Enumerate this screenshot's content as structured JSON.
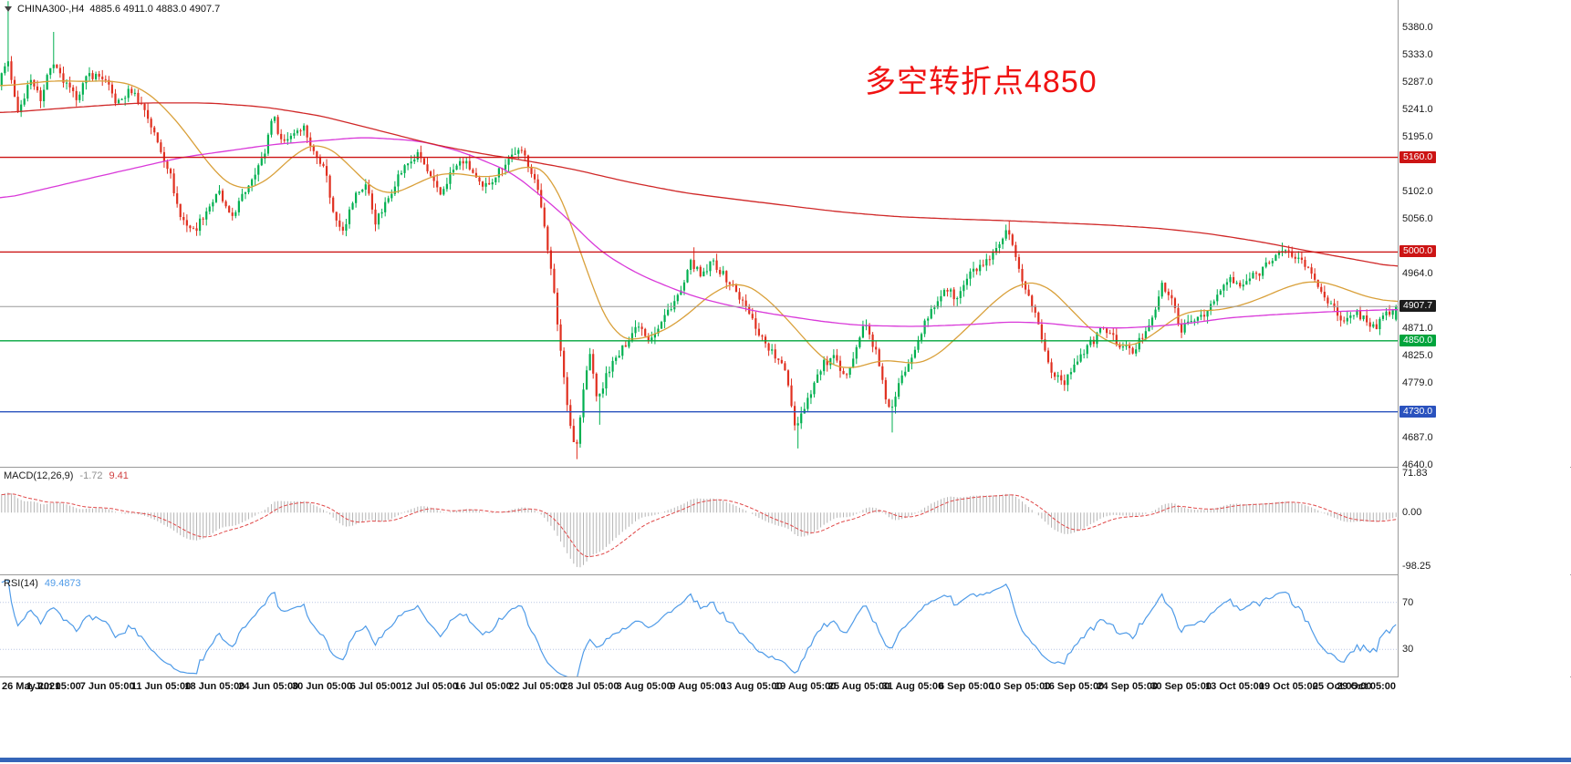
{
  "symbol_bar": {
    "symbol": "CHINA300-,H4",
    "ohlc_text": "4885.6 4911.0 4883.0 4907.7"
  },
  "annotation": {
    "text": "多空转折点4850",
    "color": "#f01212"
  },
  "current_price": {
    "value": 4907.7,
    "label": "4907.7",
    "color": "#1c1c1c"
  },
  "axes": {
    "price_labels": [
      "5380.0",
      "5333.0",
      "5287.0",
      "5241.0",
      "5195.0",
      "5102.0",
      "5056.0",
      "4964.0",
      "4871.0",
      "4825.0",
      "4779.0",
      "4687.0",
      "4640.0"
    ],
    "macd_labels": [
      "71.83",
      "0.00",
      "-98.25"
    ],
    "rsi_labels": [
      "70",
      "30"
    ],
    "time_labels": [
      "26 May 2021",
      "1 Jun 05:00",
      "7 Jun 05:00",
      "11 Jun 05:00",
      "18 Jun 05:00",
      "24 Jun 05:00",
      "30 Jun 05:00",
      "6 Jul 05:00",
      "12 Jul 05:00",
      "16 Jul 05:00",
      "22 Jul 05:00",
      "28 Jul 05:00",
      "3 Aug 05:00",
      "9 Aug 05:00",
      "13 Aug 05:00",
      "19 Aug 05:00",
      "25 Aug 05:00",
      "31 Aug 05:00",
      "6 Sep 05:00",
      "10 Sep 05:00",
      "16 Sep 05:00",
      "24 Sep 05:00",
      "30 Sep 05:00",
      "13 Oct 05:00",
      "19 Oct 05:00",
      "25 Oct 05:00",
      "29 Oct 05:00"
    ]
  },
  "indicators": {
    "macd": {
      "title": "MACD(12,26,9)",
      "main_value": "-1.72",
      "signal_value": "9.41"
    },
    "rsi": {
      "title": "RSI(14)",
      "value": "49.4873",
      "levels": [
        30,
        70
      ]
    }
  },
  "colors": {
    "up": "#00b050",
    "down": "#e03020",
    "ma_orange": "#d9a03a",
    "ma_magenta": "#d939d9",
    "ma_red": "#d02828",
    "macd_hist": "#b4b4b4",
    "macd_signal": "#e04848",
    "rsi_line": "#4f9be8",
    "rsi_level": "#b9c6e4",
    "current_line": "#9a9a9a",
    "macd_main_text": "#909090",
    "macd_signal_text": "#d04040",
    "rsi_value_text": "#4f9be8",
    "bottom_bar": "#3565b8"
  },
  "chart_data": {
    "type": "candlestick",
    "symbol": "CHINA300-",
    "timeframe": "H4",
    "title": "CHINA300- H4 with MACD(12,26,9) and RSI(14)",
    "bars": 430,
    "y_range_main": [
      4637,
      5426
    ],
    "macd_range": [
      -113,
      82
    ],
    "rsi_range": [
      7,
      93
    ],
    "ohlc_current": {
      "open": 4885.6,
      "high": 4911.0,
      "low": 4883.0,
      "close": 4907.7
    },
    "h_lines": [
      {
        "price": 5160.0,
        "label": "5160.0",
        "color": "#cc1414"
      },
      {
        "price": 5000.0,
        "label": "5000.0",
        "color": "#cc1414"
      },
      {
        "price": 4850.0,
        "label": "4850.0",
        "color": "#00a43c"
      },
      {
        "price": 4730.0,
        "label": "4730.0",
        "color": "#2a52be"
      }
    ],
    "price_path": [
      [
        0.0,
        5280
      ],
      [
        0.006,
        5330
      ],
      [
        0.014,
        5230
      ],
      [
        0.022,
        5290
      ],
      [
        0.03,
        5260
      ],
      [
        0.038,
        5320
      ],
      [
        0.046,
        5290
      ],
      [
        0.055,
        5260
      ],
      [
        0.065,
        5300
      ],
      [
        0.075,
        5295
      ],
      [
        0.085,
        5250
      ],
      [
        0.095,
        5275
      ],
      [
        0.105,
        5240
      ],
      [
        0.113,
        5190
      ],
      [
        0.122,
        5140
      ],
      [
        0.13,
        5060
      ],
      [
        0.14,
        5035
      ],
      [
        0.15,
        5075
      ],
      [
        0.158,
        5100
      ],
      [
        0.166,
        5055
      ],
      [
        0.175,
        5095
      ],
      [
        0.183,
        5135
      ],
      [
        0.19,
        5160
      ],
      [
        0.196,
        5235
      ],
      [
        0.203,
        5185
      ],
      [
        0.21,
        5200
      ],
      [
        0.218,
        5215
      ],
      [
        0.226,
        5165
      ],
      [
        0.233,
        5150
      ],
      [
        0.24,
        5060
      ],
      [
        0.247,
        5040
      ],
      [
        0.255,
        5095
      ],
      [
        0.263,
        5115
      ],
      [
        0.27,
        5050
      ],
      [
        0.278,
        5085
      ],
      [
        0.285,
        5125
      ],
      [
        0.293,
        5150
      ],
      [
        0.301,
        5165
      ],
      [
        0.308,
        5130
      ],
      [
        0.316,
        5095
      ],
      [
        0.324,
        5135
      ],
      [
        0.332,
        5155
      ],
      [
        0.338,
        5140
      ],
      [
        0.346,
        5105
      ],
      [
        0.354,
        5125
      ],
      [
        0.362,
        5150
      ],
      [
        0.37,
        5170
      ],
      [
        0.376,
        5165
      ],
      [
        0.383,
        5130
      ],
      [
        0.39,
        5060
      ],
      [
        0.397,
        4940
      ],
      [
        0.404,
        4800
      ],
      [
        0.41,
        4695
      ],
      [
        0.4135,
        4665
      ],
      [
        0.418,
        4755
      ],
      [
        0.423,
        4830
      ],
      [
        0.429,
        4745
      ],
      [
        0.436,
        4800
      ],
      [
        0.444,
        4825
      ],
      [
        0.451,
        4855
      ],
      [
        0.458,
        4880
      ],
      [
        0.465,
        4855
      ],
      [
        0.472,
        4870
      ],
      [
        0.48,
        4905
      ],
      [
        0.489,
        4935
      ],
      [
        0.496,
        4985
      ],
      [
        0.503,
        4955
      ],
      [
        0.511,
        4985
      ],
      [
        0.519,
        4960
      ],
      [
        0.526,
        4940
      ],
      [
        0.535,
        4905
      ],
      [
        0.545,
        4860
      ],
      [
        0.555,
        4825
      ],
      [
        0.564,
        4795
      ],
      [
        0.57,
        4705
      ],
      [
        0.576,
        4735
      ],
      [
        0.583,
        4775
      ],
      [
        0.59,
        4810
      ],
      [
        0.598,
        4820
      ],
      [
        0.605,
        4785
      ],
      [
        0.613,
        4835
      ],
      [
        0.62,
        4880
      ],
      [
        0.628,
        4830
      ],
      [
        0.634,
        4760
      ],
      [
        0.639,
        4730
      ],
      [
        0.645,
        4780
      ],
      [
        0.653,
        4825
      ],
      [
        0.661,
        4870
      ],
      [
        0.669,
        4905
      ],
      [
        0.677,
        4940
      ],
      [
        0.686,
        4920
      ],
      [
        0.694,
        4960
      ],
      [
        0.702,
        4975
      ],
      [
        0.71,
        4985
      ],
      [
        0.717,
        5015
      ],
      [
        0.722,
        5035
      ],
      [
        0.728,
        4985
      ],
      [
        0.734,
        4945
      ],
      [
        0.742,
        4895
      ],
      [
        0.752,
        4805
      ],
      [
        0.758,
        4790
      ],
      [
        0.764,
        4780
      ],
      [
        0.77,
        4815
      ],
      [
        0.778,
        4835
      ],
      [
        0.785,
        4855
      ],
      [
        0.79,
        4875
      ],
      [
        0.797,
        4855
      ],
      [
        0.804,
        4840
      ],
      [
        0.812,
        4830
      ],
      [
        0.82,
        4865
      ],
      [
        0.827,
        4900
      ],
      [
        0.833,
        4945
      ],
      [
        0.84,
        4915
      ],
      [
        0.846,
        4870
      ],
      [
        0.853,
        4880
      ],
      [
        0.86,
        4895
      ],
      [
        0.865,
        4900
      ],
      [
        0.872,
        4925
      ],
      [
        0.88,
        4955
      ],
      [
        0.888,
        4940
      ],
      [
        0.895,
        4955
      ],
      [
        0.902,
        4965
      ],
      [
        0.91,
        4990
      ],
      [
        0.918,
        5000
      ],
      [
        0.926,
        4995
      ],
      [
        0.933,
        4985
      ],
      [
        0.94,
        4960
      ],
      [
        0.948,
        4930
      ],
      [
        0.955,
        4905
      ],
      [
        0.962,
        4875
      ],
      [
        0.97,
        4900
      ],
      [
        0.977,
        4888
      ],
      [
        0.985,
        4872
      ],
      [
        0.992,
        4892
      ],
      [
        1.0,
        4907.7
      ]
    ],
    "wick_events": [
      {
        "frac": 0.004,
        "high": 5424
      },
      {
        "frac": 0.038,
        "high": 5372
      },
      {
        "frac": 0.4135,
        "low": 4650
      },
      {
        "frac": 0.429,
        "low": 4708
      },
      {
        "frac": 0.496,
        "high": 5008
      },
      {
        "frac": 0.572,
        "low": 4668
      },
      {
        "frac": 0.639,
        "low": 4695
      },
      {
        "frac": 0.722,
        "high": 5052
      },
      {
        "frac": 0.918,
        "high": 5016
      }
    ],
    "ma_red_path": [
      [
        0,
        5235
      ],
      [
        0.05,
        5244
      ],
      [
        0.1,
        5252
      ],
      [
        0.15,
        5252
      ],
      [
        0.19,
        5245
      ],
      [
        0.23,
        5230
      ],
      [
        0.27,
        5206
      ],
      [
        0.31,
        5182
      ],
      [
        0.345,
        5166
      ],
      [
        0.375,
        5155
      ],
      [
        0.41,
        5140
      ],
      [
        0.45,
        5118
      ],
      [
        0.49,
        5100
      ],
      [
        0.53,
        5088
      ],
      [
        0.565,
        5078
      ],
      [
        0.6,
        5068
      ],
      [
        0.64,
        5060
      ],
      [
        0.68,
        5056
      ],
      [
        0.72,
        5053
      ],
      [
        0.75,
        5050
      ],
      [
        0.79,
        5046
      ],
      [
        0.83,
        5040
      ],
      [
        0.865,
        5031
      ],
      [
        0.9,
        5018
      ],
      [
        0.94,
        5000
      ],
      [
        0.975,
        4985
      ],
      [
        1.0,
        4974
      ]
    ],
    "ma_magenta_path": [
      [
        0,
        5089
      ],
      [
        0.065,
        5125
      ],
      [
        0.13,
        5160
      ],
      [
        0.196,
        5182
      ],
      [
        0.26,
        5194
      ],
      [
        0.3,
        5188
      ],
      [
        0.33,
        5170
      ],
      [
        0.366,
        5135
      ],
      [
        0.4,
        5070
      ],
      [
        0.43,
        5000
      ],
      [
        0.457,
        4962
      ],
      [
        0.49,
        4930
      ],
      [
        0.51,
        4916
      ],
      [
        0.545,
        4898
      ],
      [
        0.587,
        4883
      ],
      [
        0.615,
        4876
      ],
      [
        0.655,
        4874
      ],
      [
        0.7,
        4878
      ],
      [
        0.72,
        4882
      ],
      [
        0.75,
        4880
      ],
      [
        0.77,
        4874
      ],
      [
        0.8,
        4871
      ],
      [
        0.83,
        4875
      ],
      [
        0.86,
        4882
      ],
      [
        0.875,
        4888
      ],
      [
        0.91,
        4894
      ],
      [
        0.95,
        4899
      ],
      [
        1.0,
        4903
      ]
    ],
    "ma_orange_path": [
      [
        0,
        5280
      ],
      [
        0.02,
        5285
      ],
      [
        0.04,
        5290
      ],
      [
        0.06,
        5288
      ],
      [
        0.08,
        5290
      ],
      [
        0.1,
        5280
      ],
      [
        0.12,
        5240
      ],
      [
        0.14,
        5180
      ],
      [
        0.155,
        5130
      ],
      [
        0.17,
        5105
      ],
      [
        0.185,
        5110
      ],
      [
        0.2,
        5140
      ],
      [
        0.215,
        5175
      ],
      [
        0.23,
        5185
      ],
      [
        0.245,
        5160
      ],
      [
        0.26,
        5120
      ],
      [
        0.275,
        5095
      ],
      [
        0.29,
        5105
      ],
      [
        0.305,
        5125
      ],
      [
        0.32,
        5135
      ],
      [
        0.335,
        5130
      ],
      [
        0.35,
        5125
      ],
      [
        0.365,
        5135
      ],
      [
        0.38,
        5150
      ],
      [
        0.395,
        5130
      ],
      [
        0.41,
        5040
      ],
      [
        0.425,
        4930
      ],
      [
        0.44,
        4855
      ],
      [
        0.455,
        4850
      ],
      [
        0.47,
        4862
      ],
      [
        0.485,
        4880
      ],
      [
        0.5,
        4912
      ],
      [
        0.515,
        4940
      ],
      [
        0.53,
        4950
      ],
      [
        0.545,
        4930
      ],
      [
        0.56,
        4895
      ],
      [
        0.575,
        4855
      ],
      [
        0.59,
        4815
      ],
      [
        0.605,
        4800
      ],
      [
        0.62,
        4810
      ],
      [
        0.635,
        4820
      ],
      [
        0.65,
        4810
      ],
      [
        0.665,
        4815
      ],
      [
        0.68,
        4845
      ],
      [
        0.7,
        4890
      ],
      [
        0.715,
        4925
      ],
      [
        0.73,
        4948
      ],
      [
        0.745,
        4950
      ],
      [
        0.76,
        4920
      ],
      [
        0.775,
        4880
      ],
      [
        0.79,
        4850
      ],
      [
        0.805,
        4838
      ],
      [
        0.82,
        4850
      ],
      [
        0.835,
        4880
      ],
      [
        0.85,
        4902
      ],
      [
        0.865,
        4900
      ],
      [
        0.88,
        4905
      ],
      [
        0.895,
        4915
      ],
      [
        0.91,
        4930
      ],
      [
        0.925,
        4945
      ],
      [
        0.94,
        4952
      ],
      [
        0.955,
        4945
      ],
      [
        0.97,
        4930
      ],
      [
        0.985,
        4920
      ],
      [
        1.0,
        4915
      ]
    ]
  }
}
